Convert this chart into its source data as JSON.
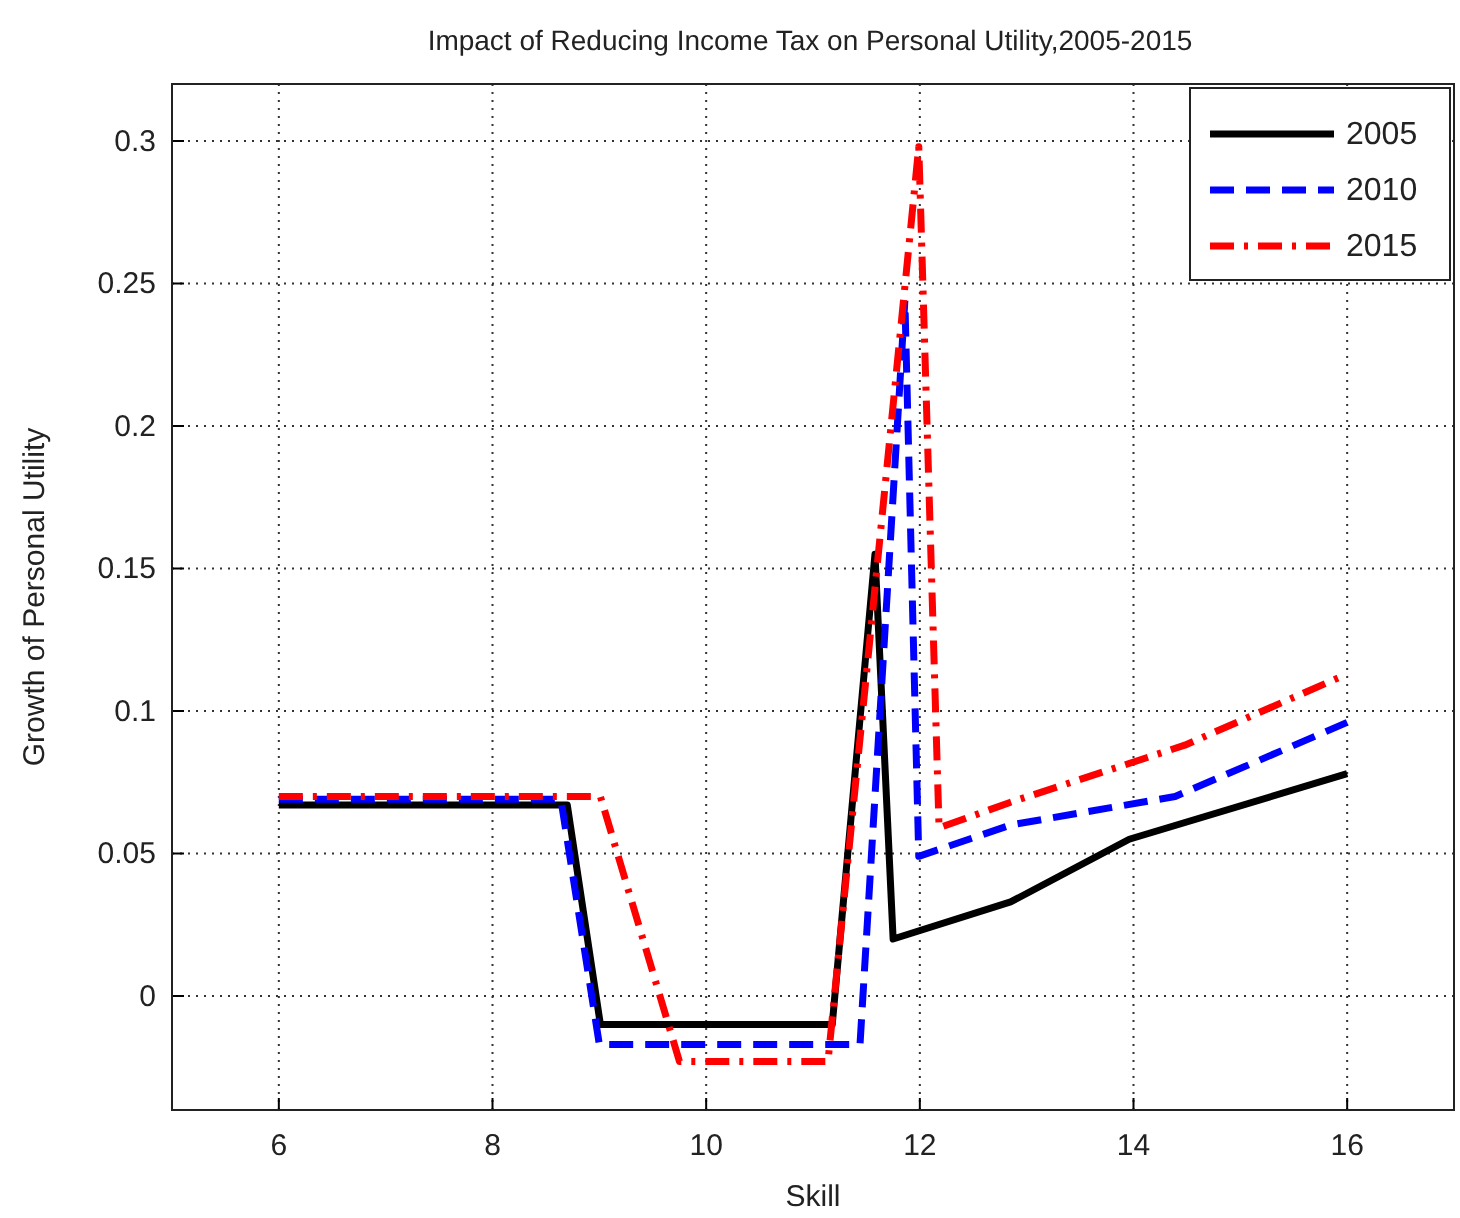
{
  "chart_data": {
    "type": "line",
    "title": "Impact of Reducing Income Tax on Personal Utility,2005-2015",
    "xlabel": "Skill",
    "ylabel": "Growth of Personal Utility",
    "xlim": [
      5,
      17
    ],
    "xticks": [
      6,
      8,
      10,
      12,
      14,
      16
    ],
    "ylim": [
      -0.04,
      0.32
    ],
    "yticks": [
      0,
      0.05,
      0.1,
      0.15,
      0.2,
      0.25,
      0.3
    ],
    "grid": true,
    "legend": "top right",
    "marker": "none",
    "series": [
      {
        "name": "2005",
        "color": "#000000",
        "line_style": "solid",
        "x": [
          6,
          8.7,
          9.01,
          11.18,
          11.58,
          11.75,
          12.85,
          13.96,
          16
        ],
        "values": [
          0.067,
          0.067,
          -0.01,
          -0.01,
          0.155,
          0.02,
          0.033,
          0.055,
          0.078
        ]
      },
      {
        "name": "2010",
        "color": "#0000ff",
        "line_style": "dashed",
        "x": [
          6,
          8.64,
          9.0,
          11.44,
          11.86,
          11.99,
          12.85,
          14.39,
          16
        ],
        "values": [
          0.069,
          0.069,
          -0.017,
          -0.017,
          0.244,
          0.049,
          0.06,
          0.07,
          0.096
        ]
      },
      {
        "name": "2015",
        "color": "#ff0000",
        "line_style": "dashdot",
        "x": [
          6,
          9.01,
          9.75,
          11.14,
          11.99,
          12.18,
          12.85,
          14.48,
          16
        ],
        "values": [
          0.07,
          0.07,
          -0.023,
          -0.023,
          0.298,
          0.059,
          0.068,
          0.088,
          0.113
        ]
      }
    ]
  }
}
